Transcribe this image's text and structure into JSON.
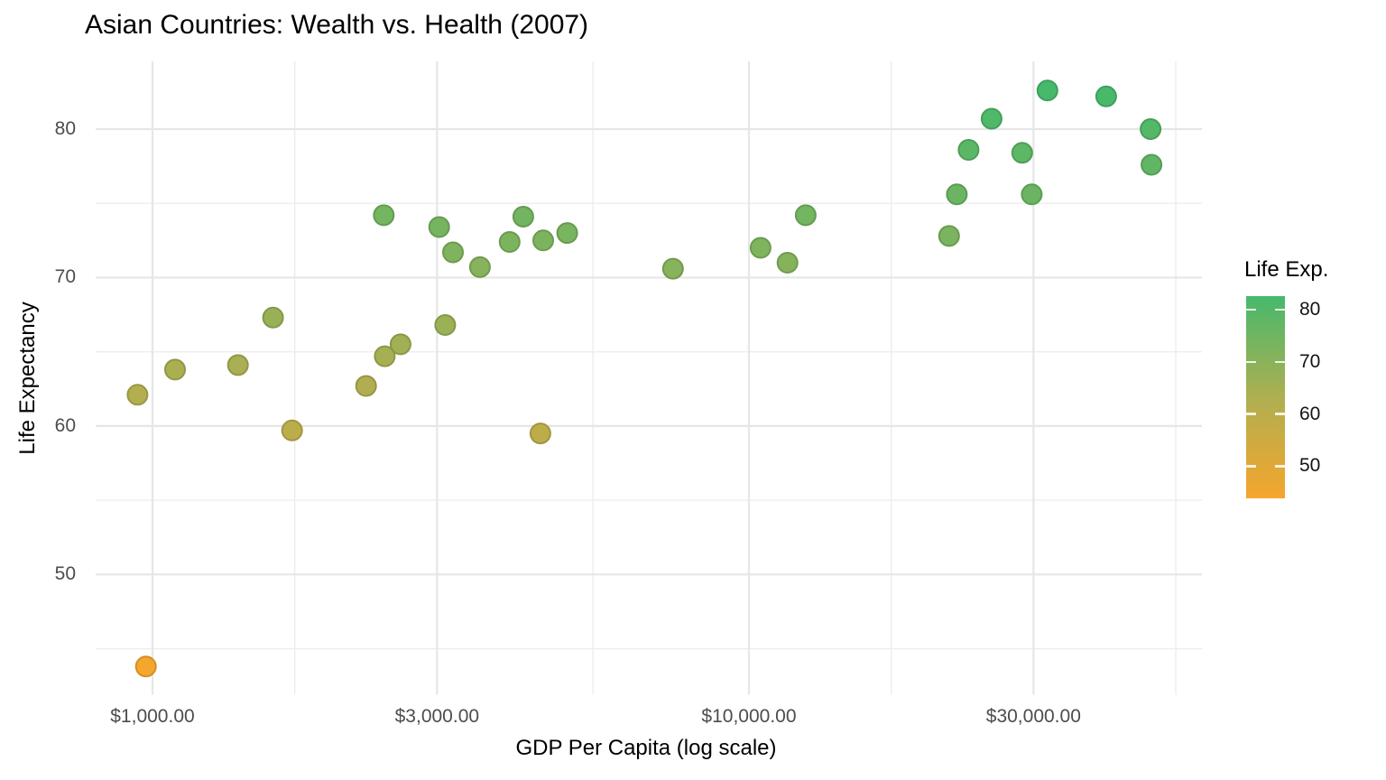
{
  "colors": {
    "background": "#ffffff",
    "title_text": "#000000",
    "tick_label_text": "#4d4d4d",
    "legend_label_text": "#141414",
    "grid_major": "#e6e6e6",
    "grid_minor": "#ededed",
    "point_low": "#f5a62c",
    "point_mid": "#b4ae4f",
    "point_high": "#46b96c"
  },
  "chart_data": {
    "type": "scatter",
    "title": "Asian Countries: Wealth vs. Health (2007)",
    "xlabel": "GDP Per Capita (log scale)",
    "ylabel": "Life Expectancy",
    "x_scale": "log10",
    "grid": true,
    "x_domain": [
      803,
      57480
    ],
    "y_domain": [
      41.9,
      84.56
    ],
    "x_ticks": [
      {
        "label": "$1,000.00",
        "value": 1000
      },
      {
        "label": "$3,000.00",
        "value": 3000
      },
      {
        "label": "$10,000.00",
        "value": 10000
      },
      {
        "label": "$30,000.00",
        "value": 30000
      }
    ],
    "x_minor": [
      1732,
      5477,
      17321,
      51962
    ],
    "y_ticks": [
      {
        "label": "50",
        "value": 50
      },
      {
        "label": "60",
        "value": 60
      },
      {
        "label": "70",
        "value": 70
      },
      {
        "label": "80",
        "value": 80
      }
    ],
    "y_minor": [
      45,
      55,
      65,
      75
    ],
    "legend": {
      "title": "Life Exp.",
      "position": "right",
      "domain": [
        43.83,
        82.6
      ],
      "ticks": [
        {
          "label": "80",
          "value": 80
        },
        {
          "label": "70",
          "value": 70
        },
        {
          "label": "60",
          "value": 60
        },
        {
          "label": "50",
          "value": 50
        }
      ]
    },
    "color_scale": {
      "stops": [
        [
          43.83,
          "#f5a62c"
        ],
        [
          62.0,
          "#b4ae4f"
        ],
        [
          82.6,
          "#46b96c"
        ]
      ]
    },
    "point_radius_px": 11,
    "points": [
      {
        "gdp": 944,
        "life_exp": 62.1
      },
      {
        "gdp": 975,
        "life_exp": 43.8
      },
      {
        "gdp": 1091,
        "life_exp": 63.8
      },
      {
        "gdp": 1391,
        "life_exp": 64.1
      },
      {
        "gdp": 1593,
        "life_exp": 67.3
      },
      {
        "gdp": 1714,
        "life_exp": 59.7
      },
      {
        "gdp": 2281,
        "life_exp": 62.7
      },
      {
        "gdp": 2442,
        "life_exp": 74.2
      },
      {
        "gdp": 2452,
        "life_exp": 64.7
      },
      {
        "gdp": 2606,
        "life_exp": 65.5
      },
      {
        "gdp": 3025,
        "life_exp": 73.4
      },
      {
        "gdp": 3096,
        "life_exp": 66.8
      },
      {
        "gdp": 3190,
        "life_exp": 71.7
      },
      {
        "gdp": 3541,
        "life_exp": 70.7
      },
      {
        "gdp": 3970,
        "life_exp": 72.4
      },
      {
        "gdp": 4185,
        "life_exp": 74.1
      },
      {
        "gdp": 4471,
        "life_exp": 59.5
      },
      {
        "gdp": 4519,
        "life_exp": 72.5
      },
      {
        "gdp": 4959,
        "life_exp": 73.0
      },
      {
        "gdp": 7458,
        "life_exp": 70.6
      },
      {
        "gdp": 10461,
        "life_exp": 72.0
      },
      {
        "gdp": 11606,
        "life_exp": 71.0
      },
      {
        "gdp": 12452,
        "life_exp": 74.2
      },
      {
        "gdp": 21655,
        "life_exp": 72.8
      },
      {
        "gdp": 22316,
        "life_exp": 75.6
      },
      {
        "gdp": 23348,
        "life_exp": 78.6
      },
      {
        "gdp": 25523,
        "life_exp": 80.7
      },
      {
        "gdp": 28718,
        "life_exp": 78.4
      },
      {
        "gdp": 29796,
        "life_exp": 75.6
      },
      {
        "gdp": 31656,
        "life_exp": 82.6
      },
      {
        "gdp": 39725,
        "life_exp": 82.2
      },
      {
        "gdp": 47143,
        "life_exp": 80.0
      },
      {
        "gdp": 47307,
        "life_exp": 77.6
      }
    ]
  }
}
